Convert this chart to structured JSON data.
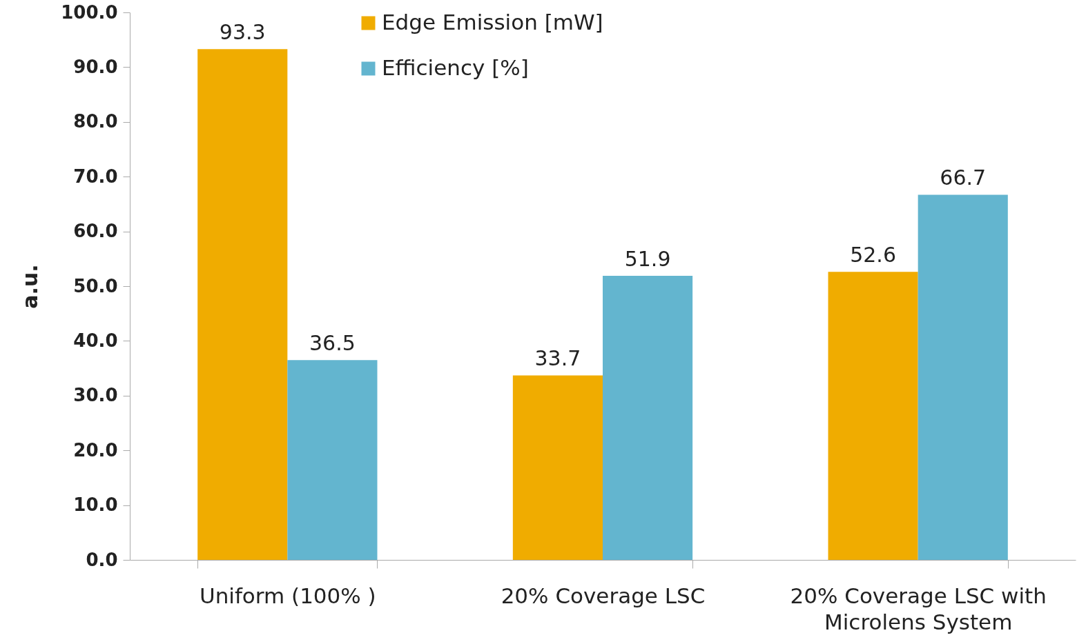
{
  "chart_data": {
    "type": "bar",
    "ylabel": "a.u.",
    "categories": [
      "Uniform (100% )",
      "20% Coverage LSC",
      "20% Coverage LSC with Microlens System"
    ],
    "series": [
      {
        "name": "Edge Emission [mW]",
        "color": "#f0ac00",
        "values": [
          93.3,
          33.7,
          52.6
        ]
      },
      {
        "name": "Efficiency [%]",
        "color": "#63b5cf",
        "values": [
          36.5,
          51.9,
          66.7
        ]
      }
    ],
    "ylim": [
      0,
      100
    ],
    "yticks": [
      {
        "value": 0,
        "label": "0.0"
      },
      {
        "value": 10,
        "label": "10.0"
      },
      {
        "value": 20,
        "label": "20.0"
      },
      {
        "value": 30,
        "label": "30.0"
      },
      {
        "value": 40,
        "label": "40.0"
      },
      {
        "value": 50,
        "label": "50.0"
      },
      {
        "value": 60,
        "label": "60.0"
      },
      {
        "value": 70,
        "label": "70.0"
      },
      {
        "value": 80,
        "label": "80.0"
      },
      {
        "value": 90,
        "label": "90.0"
      },
      {
        "value": 100,
        "label": "100.0"
      }
    ],
    "data_labels": true,
    "grid": false,
    "legend": "top"
  }
}
